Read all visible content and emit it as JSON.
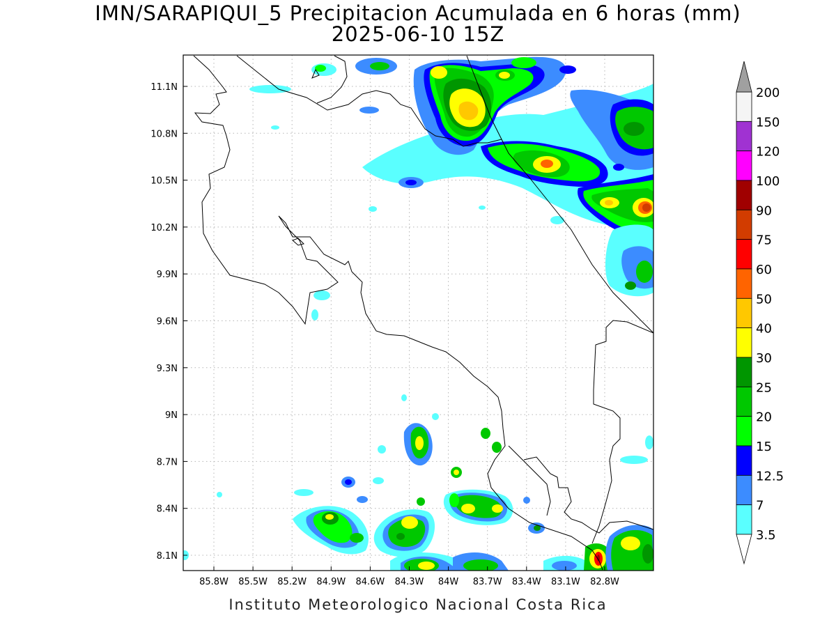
{
  "title": {
    "line1": "IMN/SARAPIQUI_5 Precipitacion Acumulada en 6 horas (mm)",
    "line2": "2025-06-10 15Z"
  },
  "footer": "Instituto Meteorologico Nacional Costa Rica",
  "axes": {
    "lat_ticks": [
      "11.1N",
      "10.8N",
      "10.5N",
      "10.2N",
      "9.9N",
      "9.6N",
      "9.3N",
      "9N",
      "8.7N",
      "8.4N",
      "8.1N"
    ],
    "lon_ticks": [
      "85.8W",
      "85.5W",
      "85.2W",
      "84.9W",
      "84.6W",
      "84.3W",
      "84W",
      "83.7W",
      "83.4W",
      "83.1W",
      "82.8W"
    ]
  },
  "legend": {
    "levels": [
      "200",
      "150",
      "120",
      "100",
      "90",
      "75",
      "60",
      "50",
      "40",
      "30",
      "25",
      "20",
      "15",
      "12.5",
      "7",
      "3.5"
    ],
    "colors": [
      "#f5f5f5",
      "#a032d2",
      "#ff00ff",
      "#a00000",
      "#d23c00",
      "#ff0000",
      "#ff6400",
      "#ffc800",
      "#ffff00",
      "#009600",
      "#00c800",
      "#00ff00",
      "#0000ff",
      "#3c8cff",
      "#5affff"
    ],
    "top_arrow_color": "#a0a0a0",
    "bottom_arrow_color": "#ffffff"
  }
}
